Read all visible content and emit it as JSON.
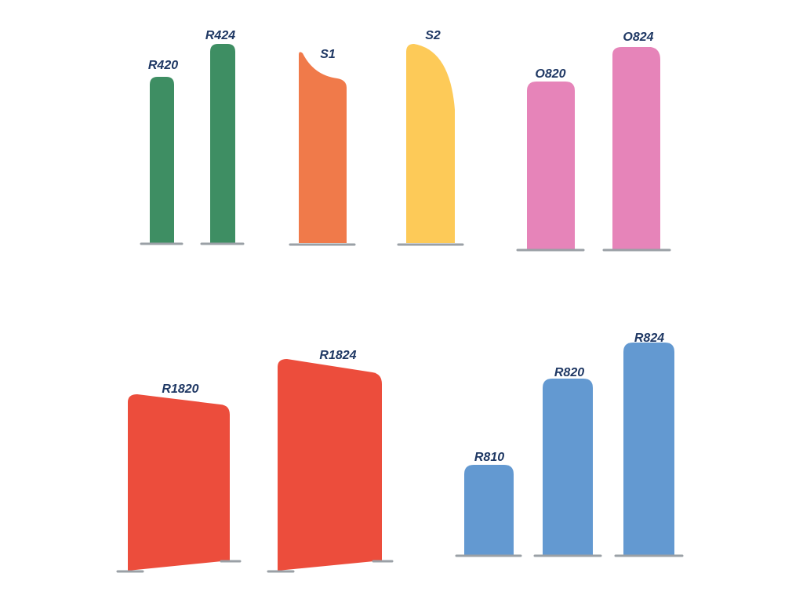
{
  "labels": [
    "R420",
    "R424",
    "S1",
    "S2",
    "O820",
    "O824",
    "R1820",
    "R1824",
    "R810",
    "R820",
    "R824"
  ]
}
